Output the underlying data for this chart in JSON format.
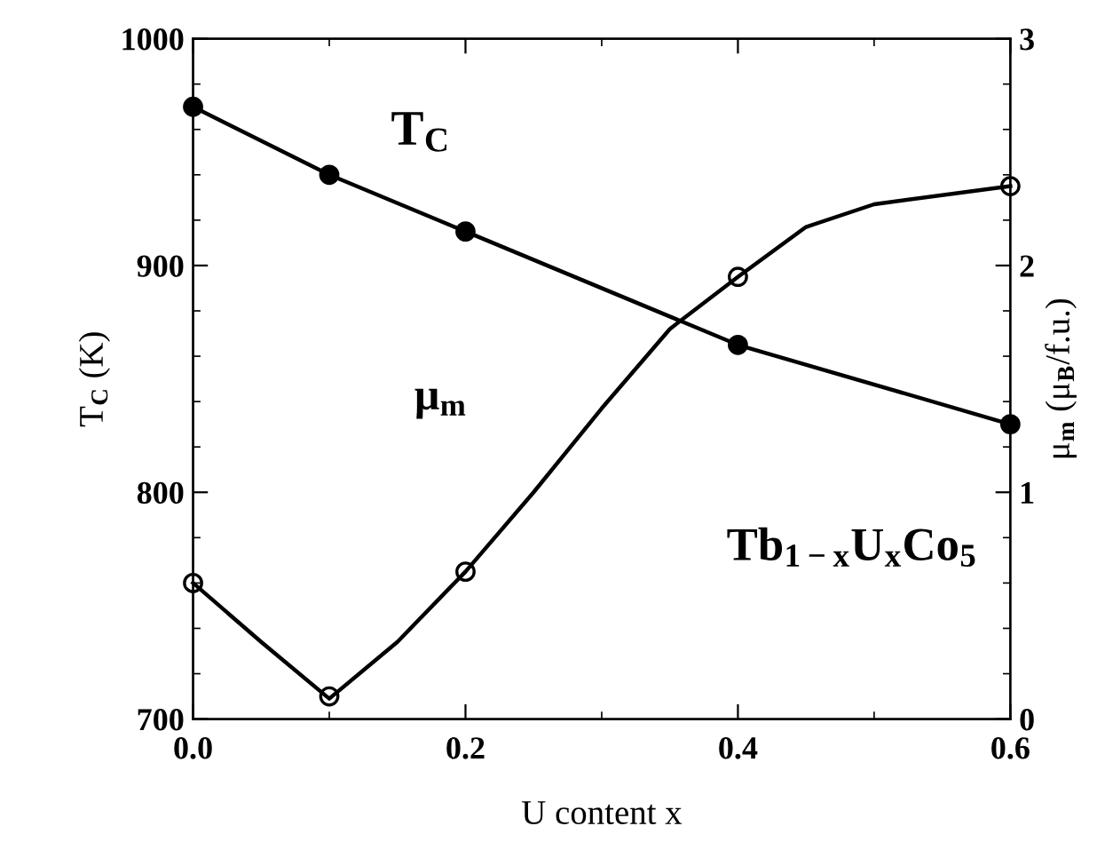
{
  "chart_data": {
    "type": "line",
    "xlabel": "U content x",
    "ylabel": "T$_{C}$ (K)",
    "y2label": "μ$_{m}$ (μ$_{B}$/f.u.)",
    "x": [
      0.0,
      0.1,
      0.2,
      0.4,
      0.6
    ],
    "series": [
      {
        "name": "T$_{C}$",
        "color": "#000000",
        "marker": "circle",
        "values": [
          970,
          940,
          915,
          865,
          830
        ]
      },
      {
        "name": "μ$_{m}$",
        "color": "#000000",
        "axis": "y2",
        "marker": "none",
        "x": [
          0.0,
          0.05,
          0.1,
          0.15,
          0.2,
          0.25,
          0.3,
          0.35,
          0.4,
          0.45,
          0.5,
          0.6
        ],
        "values": [
          0.6,
          0.34,
          0.09,
          0.34,
          0.65,
          1.0,
          1.37,
          1.72,
          1.95,
          2.17,
          2.27,
          2.35
        ]
      },
      {
        "type": "scatter",
        "color": "#000000",
        "axis": "y2",
        "marker": "circle",
        "values": [
          0.6,
          0.1,
          0.65,
          1.95,
          2.35
        ]
      }
    ],
    "annotations": [
      "Tb$_{1−x}$U$_{x}$Co$_{5}$"
    ],
    "xlim": [
      0.0,
      0.6
    ],
    "xticks": [
      {
        "value": 0.0,
        "label": "0.0"
      },
      {
        "value": 0.2,
        "label": "0.2"
      },
      {
        "value": 0.4,
        "label": "0.4"
      },
      {
        "value": 0.6,
        "label": "0.6"
      }
    ],
    "ylim": [
      700,
      1000
    ],
    "yticks": [
      700,
      800,
      900,
      1000
    ],
    "y2lim": [
      0,
      3
    ],
    "y2ticks": [
      0,
      1,
      2,
      3
    ],
    "line_style": "solid",
    "grid": false
  }
}
